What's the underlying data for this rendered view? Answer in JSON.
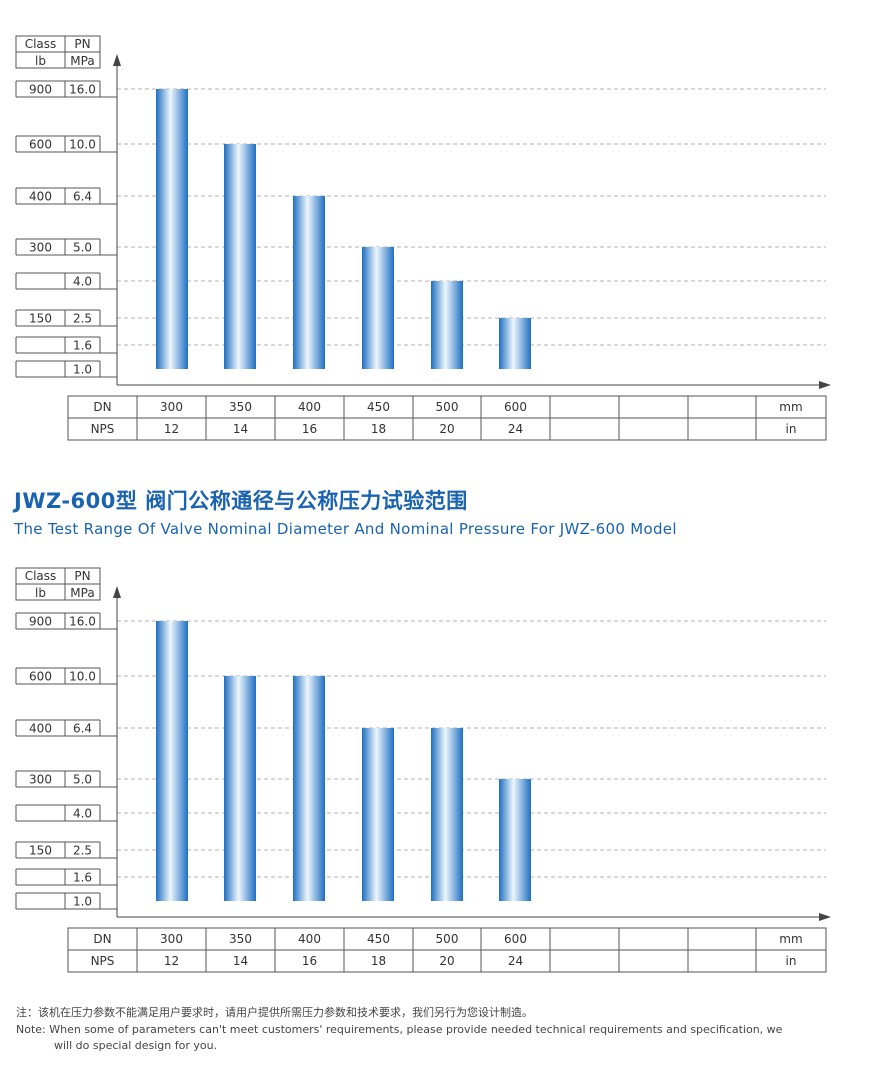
{
  "colors": {
    "title": "#1a63b0",
    "bar_light": "#eef7fd",
    "bar_dark": "#1e6fc2",
    "grid": "#9a9a9a"
  },
  "chart_data": [
    {
      "type": "bar",
      "axis_header": {
        "col1": [
          "Class",
          "lb"
        ],
        "col2": [
          "PN",
          "MPa"
        ]
      },
      "y_levels": [
        {
          "class": "900",
          "pn": "16.0"
        },
        {
          "class": "600",
          "pn": "10.0"
        },
        {
          "class": "400",
          "pn": "6.4"
        },
        {
          "class": "300",
          "pn": "5.0"
        },
        {
          "class": "",
          "pn": "4.0"
        },
        {
          "class": "150",
          "pn": "2.5"
        },
        {
          "class": "",
          "pn": "1.6"
        },
        {
          "class": "",
          "pn": "1.0"
        }
      ],
      "categories": [
        "300",
        "350",
        "400",
        "450",
        "500",
        "600"
      ],
      "values": [
        16.0,
        10.0,
        6.4,
        5.0,
        4.0,
        2.5
      ],
      "table": {
        "dn_label": "DN",
        "nps_label": "NPS",
        "dn": [
          "300",
          "350",
          "400",
          "450",
          "500",
          "600",
          "",
          "",
          ""
        ],
        "nps": [
          "12",
          "14",
          "16",
          "18",
          "20",
          "24",
          "",
          "",
          ""
        ],
        "dn_unit": "mm",
        "nps_unit": "in"
      },
      "grid": true
    },
    {
      "type": "bar",
      "axis_header": {
        "col1": [
          "Class",
          "lb"
        ],
        "col2": [
          "PN",
          "MPa"
        ]
      },
      "y_levels": [
        {
          "class": "900",
          "pn": "16.0"
        },
        {
          "class": "600",
          "pn": "10.0"
        },
        {
          "class": "400",
          "pn": "6.4"
        },
        {
          "class": "300",
          "pn": "5.0"
        },
        {
          "class": "",
          "pn": "4.0"
        },
        {
          "class": "150",
          "pn": "2.5"
        },
        {
          "class": "",
          "pn": "1.6"
        },
        {
          "class": "",
          "pn": "1.0"
        }
      ],
      "categories": [
        "300",
        "350",
        "400",
        "450",
        "500",
        "600"
      ],
      "values": [
        16.0,
        10.0,
        10.0,
        6.4,
        6.4,
        5.0
      ],
      "table": {
        "dn_label": "DN",
        "nps_label": "NPS",
        "dn": [
          "300",
          "350",
          "400",
          "450",
          "500",
          "600",
          "",
          "",
          ""
        ],
        "nps": [
          "12",
          "14",
          "16",
          "18",
          "20",
          "24",
          "",
          "",
          ""
        ],
        "dn_unit": "mm",
        "nps_unit": "in"
      },
      "grid": true
    }
  ],
  "section": {
    "title_zh": "JWZ-600型 阀门公称通径与公称压力试验范围",
    "title_en": "The Test Range Of Valve Nominal Diameter And Nominal Pressure For JWZ-600 Model"
  },
  "notes": {
    "zh": "注：该机在压力参数不能满足用户要求时，请用户提供所需压力参数和技术要求，我们另行为您设计制造。",
    "en_line1": "Note: When some of parameters can't meet customers' requirements, please provide needed technical requirements and specification, we",
    "en_line2": "will do special design for you."
  }
}
